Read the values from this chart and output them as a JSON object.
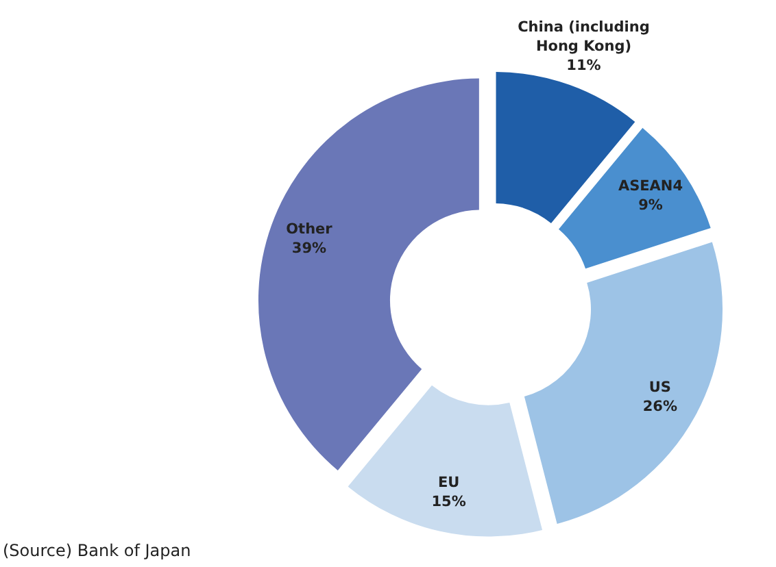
{
  "chart_data": {
    "type": "donut",
    "categories": [
      "China (including Hong Kong)",
      "ASEAN4",
      "US",
      "EU",
      "Other"
    ],
    "values": [
      11,
      9,
      26,
      15,
      39
    ],
    "colors": [
      "#1f5ea8",
      "#4a8fcf",
      "#9dc3e6",
      "#c9dcef",
      "#6a77b7"
    ],
    "value_labels": [
      "11%",
      "9%",
      "26%",
      "15%",
      "39%"
    ],
    "annotations": [
      "(Source) Bank of Japan"
    ]
  }
}
